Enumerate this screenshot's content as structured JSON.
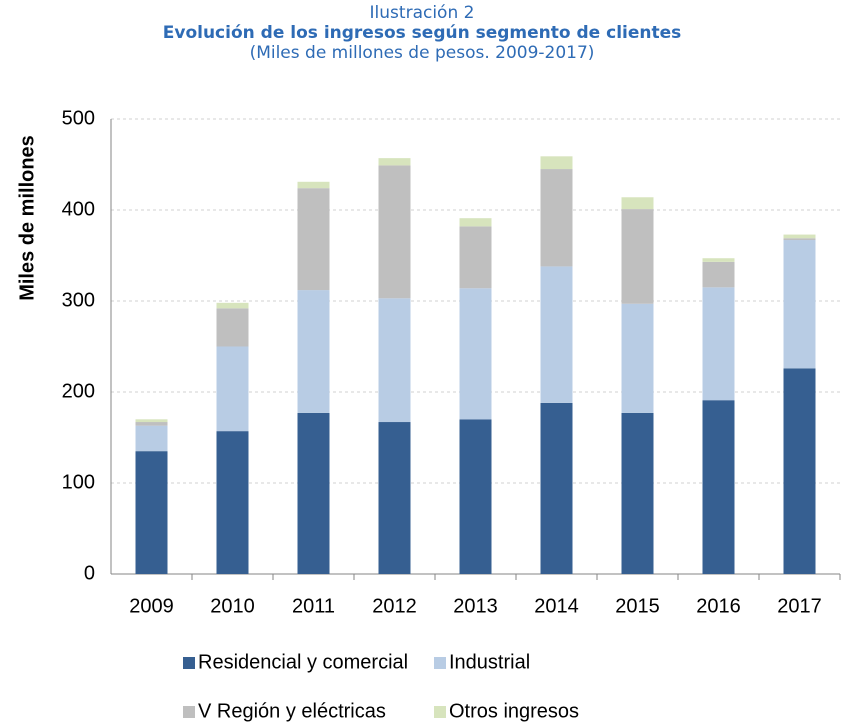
{
  "chart_data": {
    "type": "stacked_bar",
    "title_top": "Ilustración 2",
    "title": "Evolución de los ingresos según segmento de clientes",
    "subtitle": "(Miles de millones de pesos. 2009-2017)",
    "y_label": "Miles de millones",
    "categories": [
      "2009",
      "2010",
      "2011",
      "2012",
      "2013",
      "2014",
      "2015",
      "2016",
      "2017"
    ],
    "series": [
      {
        "name": "Residencial y comercial",
        "color": "#365f91",
        "values": [
          135,
          157,
          177,
          167,
          170,
          188,
          177,
          191,
          226
        ]
      },
      {
        "name": "Industrial",
        "color": "#b8cce4",
        "values": [
          28,
          93,
          135,
          136,
          144,
          150,
          120,
          124,
          141
        ]
      },
      {
        "name": "V Región y eléctricas",
        "color": "#bfbfbf",
        "values": [
          4,
          42,
          112,
          146,
          68,
          107,
          104,
          28,
          2
        ]
      },
      {
        "name": "Otros ingresos",
        "color": "#d7e4bd",
        "values": [
          3,
          6,
          7,
          8,
          9,
          14,
          13,
          4,
          4
        ]
      }
    ],
    "ylim": [
      0,
      500
    ],
    "yticks": [
      0,
      100,
      200,
      300,
      400,
      500
    ],
    "grid": true
  }
}
